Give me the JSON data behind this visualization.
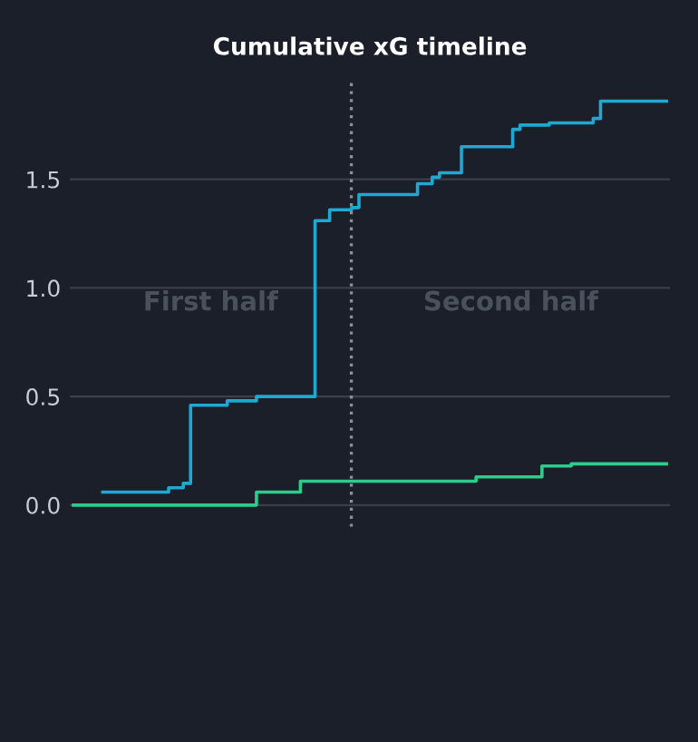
{
  "chart_data": {
    "type": "step",
    "title": "Cumulative xG timeline",
    "categories": [
      null,
      null,
      null,
      null,
      null,
      null,
      null,
      null,
      null,
      null,
      null,
      null,
      null,
      null,
      null,
      null,
      null,
      null,
      null,
      null,
      null,
      null,
      null,
      null,
      null,
      null,
      null,
      null,
      null,
      null,
      null,
      null,
      null,
      null,
      null,
      null,
      null,
      null,
      null,
      null,
      null,
      null,
      null,
      null,
      null,
      null,
      null,
      null,
      null,
      null,
      null,
      null,
      null,
      null,
      null,
      null,
      null,
      null,
      null,
      null,
      null,
      null,
      null,
      null,
      null,
      null,
      null,
      null,
      null,
      null,
      null,
      null,
      null,
      null,
      null,
      null,
      null,
      null,
      null,
      null,
      null,
      null
    ],
    "series": [
      {
        "color": "#1ea8d2",
        "values": [
          null,
          null,
          null,
          null,
          0.06,
          0.06,
          0.06,
          0.06,
          0.06,
          0.06,
          0.06,
          0.06,
          0.06,
          0.08,
          0.08,
          0.1,
          0.46,
          0.46,
          0.46,
          0.46,
          0.46,
          0.48,
          0.48,
          0.48,
          0.48,
          0.5,
          0.5,
          0.5,
          0.5,
          0.5,
          0.5,
          0.5,
          0.5,
          1.31,
          1.31,
          1.36,
          1.36,
          1.36,
          1.37,
          1.43,
          1.43,
          1.43,
          1.43,
          1.43,
          1.43,
          1.43,
          1.43,
          1.48,
          1.48,
          1.51,
          1.53,
          1.53,
          1.53,
          1.65,
          1.65,
          1.65,
          1.65,
          1.65,
          1.65,
          1.65,
          1.73,
          1.75,
          1.75,
          1.75,
          1.75,
          1.76,
          1.76,
          1.76,
          1.76,
          1.76,
          1.76,
          1.78,
          1.86,
          1.86,
          1.86,
          1.86,
          1.86,
          1.86,
          1.86,
          1.86,
          1.86,
          1.86
        ]
      },
      {
        "color": "#2ecc8a",
        "values": [
          0,
          0,
          0,
          0,
          0,
          0,
          0,
          0,
          0,
          0,
          0,
          0,
          0,
          0,
          0,
          0,
          0,
          0,
          0,
          0,
          0,
          0,
          0,
          0,
          0,
          0.06,
          0.06,
          0.06,
          0.06,
          0.06,
          0.06,
          0.11,
          0.11,
          0.11,
          0.11,
          0.11,
          0.11,
          0.11,
          0.11,
          0.11,
          0.11,
          0.11,
          0.11,
          0.11,
          0.11,
          0.11,
          0.11,
          0.11,
          0.11,
          0.11,
          0.11,
          0.11,
          0.11,
          0.11,
          0.11,
          0.13,
          0.13,
          0.13,
          0.13,
          0.13,
          0.13,
          0.13,
          0.13,
          0.13,
          0.18,
          0.18,
          0.18,
          0.18,
          0.19,
          0.19,
          0.19,
          0.19,
          0.19,
          0.19,
          0.19,
          0.19,
          0.19,
          0.19,
          0.19,
          0.19,
          0.19,
          0.19
        ]
      }
    ],
    "ylim": [
      -0.1,
      1.95
    ],
    "yticks": [
      {
        "value": 0,
        "label": "0.0"
      },
      0.5,
      {
        "value": 1,
        "label": "1.0"
      },
      1.5
    ],
    "grid": "y",
    "tick_labels": "y",
    "annotations": [
      "First half",
      "Second half"
    ]
  }
}
